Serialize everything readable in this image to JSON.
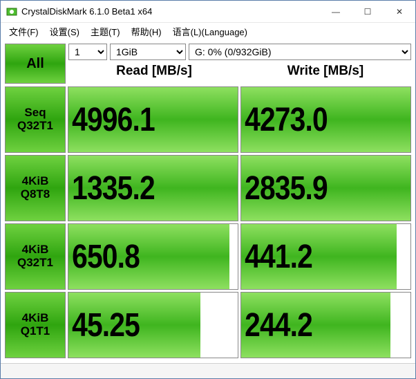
{
  "window": {
    "title": "CrystalDiskMark 6.1.0 Beta1 x64",
    "controls": {
      "minimize": "—",
      "maximize": "☐",
      "close": "✕"
    }
  },
  "menu": {
    "file": "文件(F)",
    "settings": "设置(S)",
    "theme": "主题(T)",
    "help": "帮助(H)",
    "language": "语言(L)(Language)"
  },
  "controls": {
    "all_button": "All",
    "test_count": "1",
    "test_size": "1GiB",
    "drive": "G: 0% (0/932GiB)"
  },
  "headers": {
    "read": "Read [MB/s]",
    "write": "Write [MB/s]"
  },
  "tests": [
    {
      "name": "seq-q32t1",
      "label1": "Seq",
      "label2": "Q32T1",
      "read": "4996.1",
      "read_fill": 100,
      "write": "4273.0",
      "write_fill": 100
    },
    {
      "name": "4k-q8t8",
      "label1": "4KiB",
      "label2": "Q8T8",
      "read": "1335.2",
      "read_fill": 100,
      "write": "2835.9",
      "write_fill": 100
    },
    {
      "name": "4k-q32t1",
      "label1": "4KiB",
      "label2": "Q32T1",
      "read": "650.8",
      "read_fill": 95,
      "write": "441.2",
      "write_fill": 92
    },
    {
      "name": "4k-q1t1",
      "label1": "4KiB",
      "label2": "Q1T1",
      "read": "45.25",
      "read_fill": 78,
      "write": "244.2",
      "write_fill": 88
    }
  ],
  "colors": {
    "button_gradient_light": "#6fd140",
    "button_gradient_dark": "#2fa50f",
    "cell_gradient_light": "#8ee060",
    "cell_gradient_dark": "#3fb51f",
    "border": "#888888",
    "window_border": "#5a7ca8"
  }
}
